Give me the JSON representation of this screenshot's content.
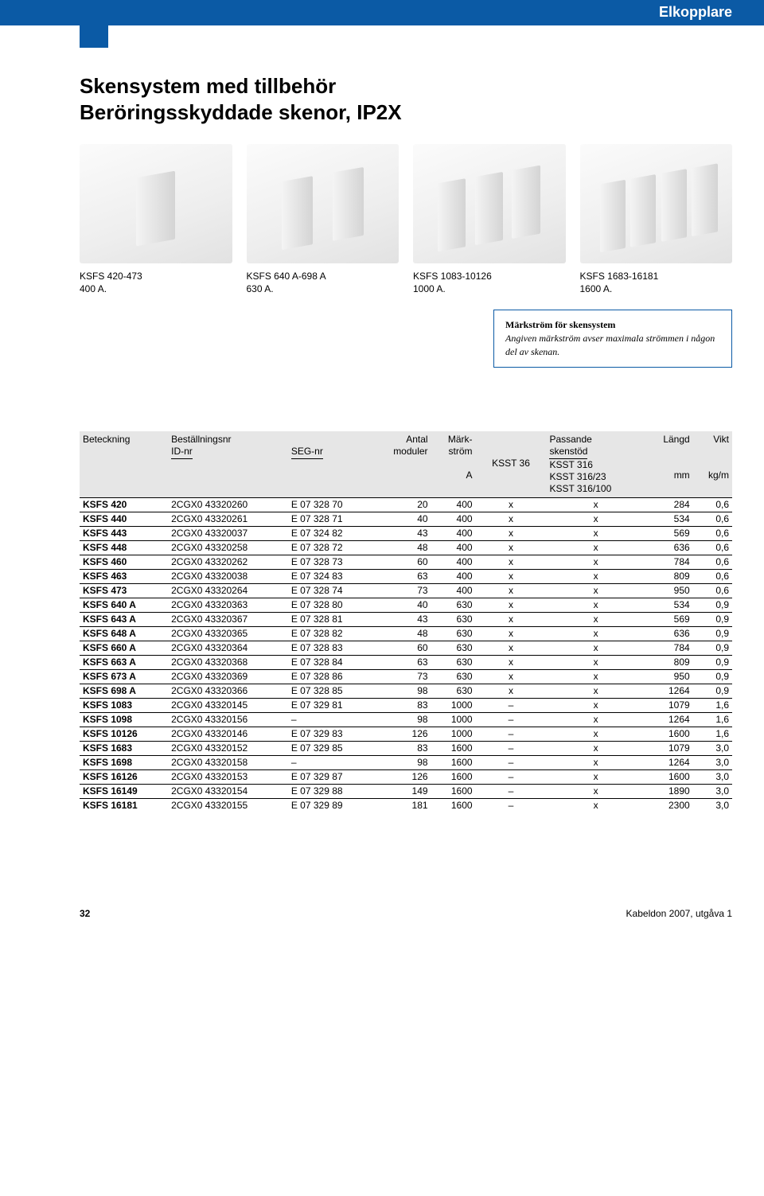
{
  "header": {
    "category": "Elkopplare"
  },
  "title_line1": "Skensystem med tillbehör",
  "title_line2": "Beröringsskyddade skenor, IP2X",
  "products": [
    {
      "title": "KSFS 420-473",
      "sub": "400 A."
    },
    {
      "title": "KSFS 640 A-698 A",
      "sub": "630 A."
    },
    {
      "title": "KSFS 1083-10126",
      "sub": "1000 A."
    },
    {
      "title": "KSFS 1683-16181",
      "sub": "1600 A."
    }
  ],
  "note": {
    "title": "Märkström för skensystem",
    "body": "Angiven märkström avser maximala strömmen i någon del av skenan."
  },
  "table": {
    "headers": {
      "beteckning": "Beteckning",
      "bestallningsnr": "Beställningsnr",
      "idnr": "ID-nr",
      "segnr": "SEG-nr",
      "antal": "Antal",
      "moduler": "moduler",
      "mark": "Märk-",
      "strom": "ström",
      "passande": "Passande",
      "skenstod": "skenstöd",
      "ksst36": "KSST 36",
      "ksst316": "KSST 316",
      "ksst31623": "KSST 316/23",
      "ksst316100": "KSST 316/100",
      "langd": "Längd",
      "vikt": "Vikt",
      "unitA": "A",
      "unitmm": "mm",
      "unitkg": "kg/m"
    },
    "rows": [
      [
        "KSFS 420",
        "2CGX0 43320260",
        "E 07 328 70",
        "20",
        "400",
        "x",
        "x",
        "284",
        "0,6"
      ],
      [
        "KSFS 440",
        "2CGX0 43320261",
        "E 07 328 71",
        "40",
        "400",
        "x",
        "x",
        "534",
        "0,6"
      ],
      [
        "KSFS 443",
        "2CGX0 43320037",
        "E 07 324 82",
        "43",
        "400",
        "x",
        "x",
        "569",
        "0,6"
      ],
      [
        "KSFS 448",
        "2CGX0 43320258",
        "E 07 328 72",
        "48",
        "400",
        "x",
        "x",
        "636",
        "0,6"
      ],
      [
        "KSFS 460",
        "2CGX0 43320262",
        "E 07 328 73",
        "60",
        "400",
        "x",
        "x",
        "784",
        "0,6"
      ],
      [
        "KSFS 463",
        "2CGX0 43320038",
        "E 07 324 83",
        "63",
        "400",
        "x",
        "x",
        "809",
        "0,6"
      ],
      [
        "KSFS 473",
        "2CGX0 43320264",
        "E 07 328 74",
        "73",
        "400",
        "x",
        "x",
        "950",
        "0,6"
      ],
      [
        "KSFS 640 A",
        "2CGX0 43320363",
        "E 07 328 80",
        "40",
        "630",
        "x",
        "x",
        "534",
        "0,9"
      ],
      [
        "KSFS 643 A",
        "2CGX0 43320367",
        "E 07 328 81",
        "43",
        "630",
        "x",
        "x",
        "569",
        "0,9"
      ],
      [
        "KSFS 648 A",
        "2CGX0 43320365",
        "E 07 328 82",
        "48",
        "630",
        "x",
        "x",
        "636",
        "0,9"
      ],
      [
        "KSFS 660 A",
        "2CGX0 43320364",
        "E 07 328 83",
        "60",
        "630",
        "x",
        "x",
        "784",
        "0,9"
      ],
      [
        "KSFS 663 A",
        "2CGX0 43320368",
        "E 07 328 84",
        "63",
        "630",
        "x",
        "x",
        "809",
        "0,9"
      ],
      [
        "KSFS 673 A",
        "2CGX0 43320369",
        "E 07 328 86",
        "73",
        "630",
        "x",
        "x",
        "950",
        "0,9"
      ],
      [
        "KSFS 698 A",
        "2CGX0 43320366",
        "E 07 328 85",
        "98",
        "630",
        "x",
        "x",
        "1264",
        "0,9"
      ],
      [
        "KSFS 1083",
        "2CGX0 43320145",
        "E 07 329 81",
        "83",
        "1000",
        "–",
        "x",
        "1079",
        "1,6"
      ],
      [
        "KSFS 1098",
        "2CGX0 43320156",
        "–",
        "98",
        "1000",
        "–",
        "x",
        "1264",
        "1,6"
      ],
      [
        "KSFS 10126",
        "2CGX0 43320146",
        "E 07 329 83",
        "126",
        "1000",
        "–",
        "x",
        "1600",
        "1,6"
      ],
      [
        "KSFS 1683",
        "2CGX0 43320152",
        "E 07 329 85",
        "83",
        "1600",
        "–",
        "x",
        "1079",
        "3,0"
      ],
      [
        "KSFS 1698",
        "2CGX0 43320158",
        "–",
        "98",
        "1600",
        "–",
        "x",
        "1264",
        "3,0"
      ],
      [
        "KSFS 16126",
        "2CGX0 43320153",
        "E 07 329 87",
        "126",
        "1600",
        "–",
        "x",
        "1600",
        "3,0"
      ],
      [
        "KSFS 16149",
        "2CGX0 43320154",
        "E 07 329 88",
        "149",
        "1600",
        "–",
        "x",
        "1890",
        "3,0"
      ],
      [
        "KSFS 16181",
        "2CGX0 43320155",
        "E 07 329 89",
        "181",
        "1600",
        "–",
        "x",
        "2300",
        "3,0"
      ]
    ]
  },
  "footer": {
    "page": "32",
    "pub": "Kabeldon 2007, utgåva 1"
  },
  "colors": {
    "brand": "#0b5aa5",
    "thead_bg": "#e6e6e6",
    "text": "#000000"
  }
}
